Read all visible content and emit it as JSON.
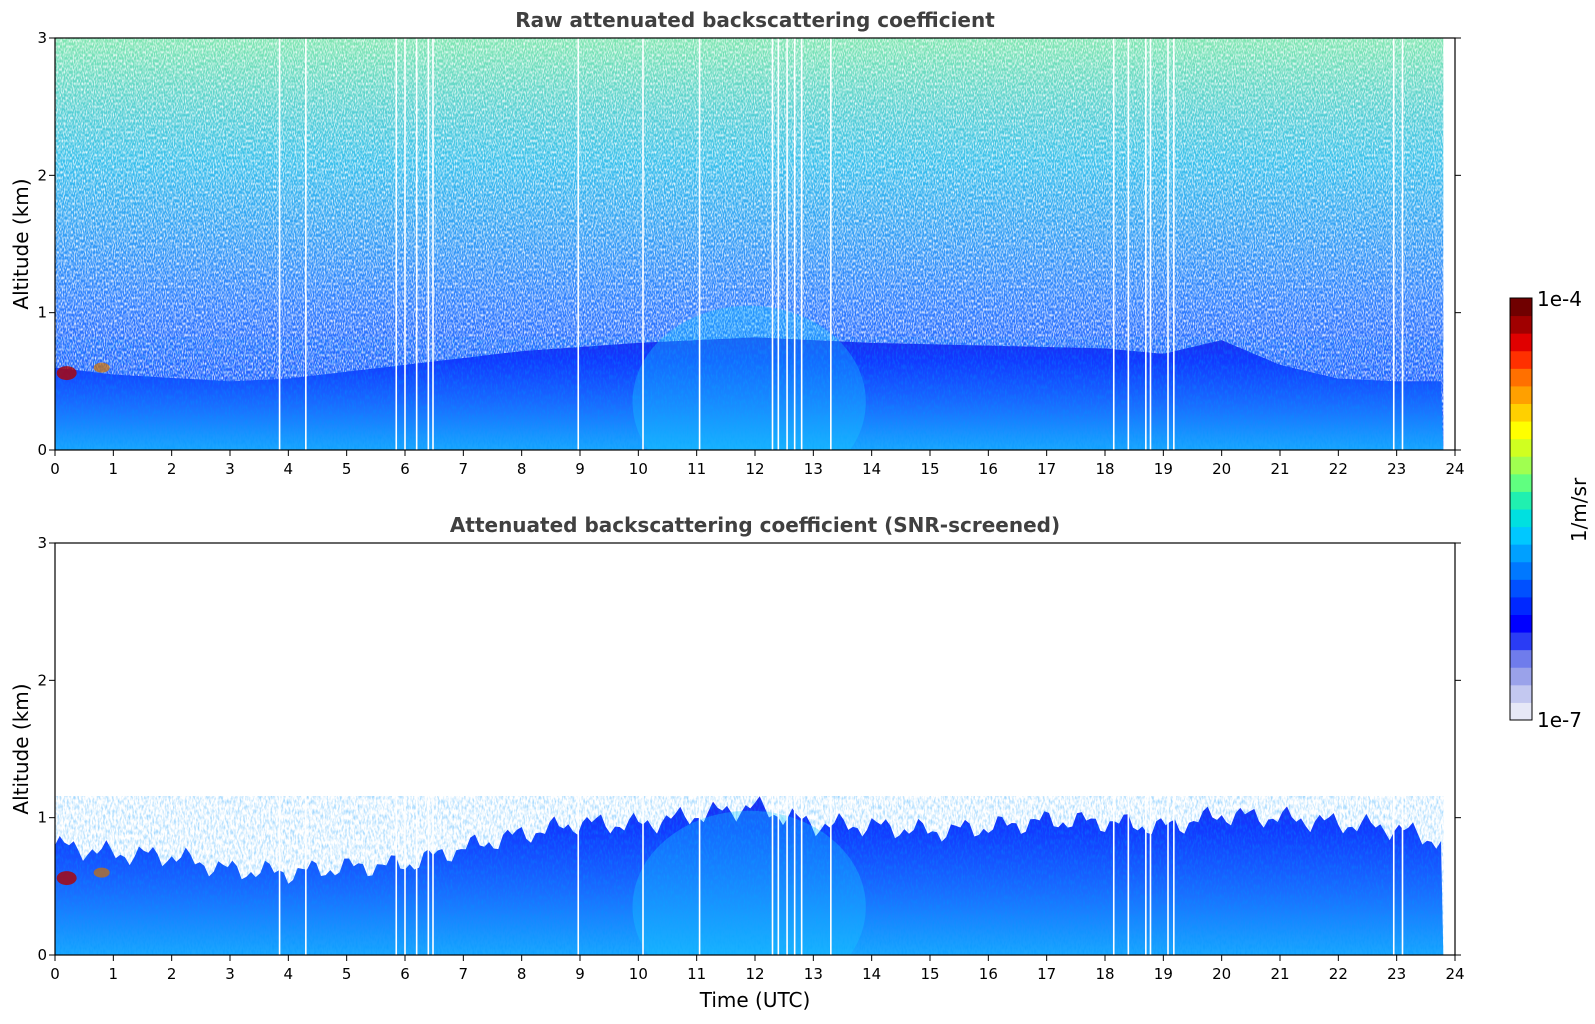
{
  "chart_data": [
    {
      "type": "heatmap",
      "title": "Raw attenuated backscattering coefficient",
      "xlabel": "",
      "ylabel": "Altitude (km)",
      "xlim": [
        0,
        24
      ],
      "ylim": [
        0,
        3
      ],
      "x_ticks": [
        "0",
        "1",
        "2",
        "3",
        "4",
        "5",
        "6",
        "7",
        "8",
        "9",
        "10",
        "11",
        "12",
        "13",
        "14",
        "15",
        "16",
        "17",
        "18",
        "19",
        "20",
        "21",
        "22",
        "23",
        "24"
      ],
      "y_ticks": [
        "0",
        "1",
        "2",
        "3"
      ],
      "data_end_time": 23.8,
      "boundary_layer_top_km": [
        [
          0,
          0.6
        ],
        [
          1,
          0.55
        ],
        [
          3,
          0.5
        ],
        [
          4,
          0.52
        ],
        [
          6,
          0.62
        ],
        [
          8,
          0.72
        ],
        [
          10,
          0.78
        ],
        [
          12,
          0.82
        ],
        [
          14,
          0.78
        ],
        [
          16,
          0.76
        ],
        [
          18,
          0.74
        ],
        [
          19,
          0.7
        ],
        [
          20,
          0.8
        ],
        [
          21,
          0.62
        ],
        [
          22,
          0.52
        ],
        [
          23,
          0.5
        ],
        [
          23.8,
          0.5
        ]
      ],
      "data_gap_times": [
        3.85,
        4.3,
        5.85,
        6.0,
        6.2,
        6.4,
        6.48,
        8.97,
        10.08,
        11.05,
        12.3,
        12.4,
        12.55,
        12.68,
        12.8,
        13.3,
        18.15,
        18.4,
        18.7,
        18.78,
        19.08,
        19.18,
        22.95,
        23.1
      ]
    },
    {
      "type": "heatmap",
      "title": "Attenuated backscattering coefficient (SNR-screened)",
      "xlabel": "Time (UTC)",
      "ylabel": "Altitude (km)",
      "xlim": [
        0,
        24
      ],
      "ylim": [
        0,
        3
      ],
      "x_ticks": [
        "0",
        "1",
        "2",
        "3",
        "4",
        "5",
        "6",
        "7",
        "8",
        "9",
        "10",
        "11",
        "12",
        "13",
        "14",
        "15",
        "16",
        "17",
        "18",
        "19",
        "20",
        "21",
        "22",
        "23",
        "24"
      ],
      "y_ticks": [
        "0",
        "1",
        "2",
        "3"
      ],
      "data_end_time": 23.8,
      "boundary_layer_top_km": [
        [
          0,
          0.8
        ],
        [
          1,
          0.74
        ],
        [
          2,
          0.72
        ],
        [
          3,
          0.62
        ],
        [
          4,
          0.6
        ],
        [
          5,
          0.64
        ],
        [
          6,
          0.66
        ],
        [
          7,
          0.78
        ],
        [
          8,
          0.88
        ],
        [
          9,
          0.96
        ],
        [
          10,
          0.95
        ],
        [
          11,
          1.02
        ],
        [
          12,
          1.08
        ],
        [
          13,
          0.95
        ],
        [
          14,
          0.94
        ],
        [
          15,
          0.9
        ],
        [
          16,
          0.93
        ],
        [
          17,
          0.98
        ],
        [
          18,
          0.97
        ],
        [
          19,
          0.93
        ],
        [
          20,
          1.02
        ],
        [
          21,
          1.0
        ],
        [
          22,
          0.96
        ],
        [
          23,
          0.92
        ],
        [
          23.8,
          0.82
        ]
      ],
      "data_gap_times": [
        3.85,
        4.3,
        5.85,
        6.0,
        6.2,
        6.4,
        6.48,
        8.97,
        10.08,
        11.05,
        12.3,
        12.4,
        12.55,
        12.68,
        12.8,
        13.3,
        18.15,
        18.4,
        18.7,
        18.78,
        19.08,
        19.18,
        22.95,
        23.1
      ]
    }
  ],
  "colorbar": {
    "label": "1/m/sr",
    "max_label": "1e-4",
    "min_label": "1e-7",
    "scale": "log",
    "colors": [
      "#e6e8f7",
      "#c3c8f0",
      "#9aa2ea",
      "#6f7cec",
      "#2a3cf5",
      "#0000ff",
      "#0028ff",
      "#0050ff",
      "#0078ff",
      "#00a0ff",
      "#00c8ff",
      "#00e0e0",
      "#20f0b0",
      "#60ff80",
      "#a0ff50",
      "#d0ff20",
      "#ffff00",
      "#ffd000",
      "#ffa000",
      "#ff7000",
      "#ff3000",
      "#e00000",
      "#a00000",
      "#700000"
    ]
  }
}
